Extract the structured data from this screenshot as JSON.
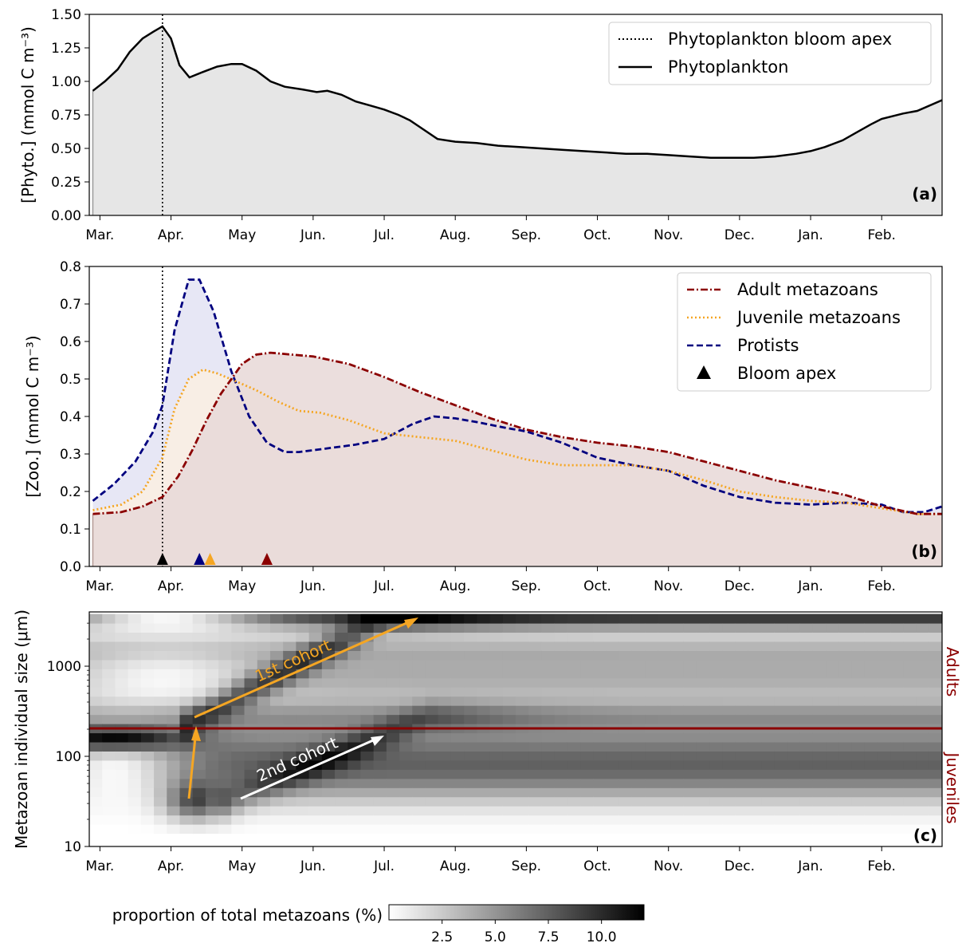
{
  "chart_data": [
    {
      "panel": "(a)",
      "type": "area",
      "ylabel": "[Phyto.] (mmol C m⁻³)",
      "ylim": [
        0,
        1.5
      ],
      "yticks": [
        0.0,
        0.25,
        0.5,
        0.75,
        1.0,
        1.25,
        1.5
      ],
      "yticklabels": [
        "0.00",
        "0.25",
        "0.50",
        "0.75",
        "1.00",
        "1.25",
        "1.50"
      ],
      "xlim": [
        -0.15,
        11.85
      ],
      "x_ticklabels": [
        "Mar.",
        "Apr.",
        "May",
        "Jun.",
        "Jul.",
        "Aug.",
        "Sep.",
        "Oct.",
        "Nov.",
        "Dec.",
        "Jan.",
        "Feb."
      ],
      "legend_position": "top-right",
      "legend": [
        "Phytoplankton bloom apex",
        "Phytoplankton"
      ],
      "bloom_apex_x": 0.88,
      "series": [
        {
          "name": "Phytoplankton",
          "style": "solid",
          "color": "#000000",
          "fill": "#e6e6e6",
          "x": [
            -0.1,
            0.07,
            0.25,
            0.42,
            0.6,
            0.75,
            0.88,
            1.0,
            1.12,
            1.26,
            1.45,
            1.65,
            1.85,
            2.0,
            2.2,
            2.4,
            2.6,
            2.85,
            3.05,
            3.2,
            3.4,
            3.6,
            3.8,
            4.0,
            4.2,
            4.36,
            4.5,
            4.75,
            5.0,
            5.3,
            5.6,
            5.9,
            6.2,
            6.5,
            6.8,
            7.1,
            7.4,
            7.7,
            8.0,
            8.3,
            8.6,
            8.9,
            9.2,
            9.5,
            9.8,
            10.0,
            10.2,
            10.45,
            10.65,
            10.85,
            11.0,
            11.15,
            11.3,
            11.5,
            11.85
          ],
          "values": [
            0.93,
            1.0,
            1.09,
            1.22,
            1.32,
            1.37,
            1.41,
            1.32,
            1.12,
            1.03,
            1.07,
            1.11,
            1.13,
            1.13,
            1.08,
            1.0,
            0.96,
            0.94,
            0.92,
            0.93,
            0.9,
            0.85,
            0.82,
            0.79,
            0.75,
            0.71,
            0.66,
            0.57,
            0.55,
            0.54,
            0.52,
            0.51,
            0.5,
            0.49,
            0.48,
            0.47,
            0.46,
            0.46,
            0.45,
            0.44,
            0.43,
            0.43,
            0.43,
            0.44,
            0.46,
            0.48,
            0.51,
            0.56,
            0.62,
            0.68,
            0.72,
            0.74,
            0.76,
            0.78,
            0.86
          ]
        }
      ]
    },
    {
      "panel": "(b)",
      "type": "area",
      "ylabel": "[Zoo.] (mmol C m⁻³)",
      "ylim": [
        0,
        0.8
      ],
      "yticks": [
        0.0,
        0.1,
        0.2,
        0.3,
        0.4,
        0.5,
        0.6,
        0.7,
        0.8
      ],
      "yticklabels": [
        "0.0",
        "0.1",
        "0.2",
        "0.3",
        "0.4",
        "0.5",
        "0.6",
        "0.7",
        "0.8"
      ],
      "xlim": [
        -0.15,
        11.85
      ],
      "x_ticklabels": [
        "Mar.",
        "Apr.",
        "May",
        "Jun.",
        "Jul.",
        "Aug.",
        "Sep.",
        "Oct.",
        "Nov.",
        "Dec.",
        "Jan.",
        "Feb."
      ],
      "legend_position": "top-right",
      "legend": [
        "Adult metazoans",
        "Juvenile metazoans",
        "Protists",
        "Bloom apex"
      ],
      "bloom_apex_x": 0.88,
      "apex_markers": [
        {
          "x": 0.88,
          "color": "#000000"
        },
        {
          "x": 1.4,
          "color": "#00007f"
        },
        {
          "x": 1.55,
          "color": "#f5a623"
        },
        {
          "x": 2.35,
          "color": "#8b0000"
        }
      ],
      "series": [
        {
          "name": "Adult metazoans",
          "style": "dashdot",
          "color": "#8b0000",
          "fill": "#fbf3f2",
          "x": [
            -0.1,
            0.3,
            0.6,
            0.88,
            1.1,
            1.3,
            1.5,
            1.7,
            2.0,
            2.2,
            2.4,
            2.7,
            3.0,
            3.5,
            4.0,
            4.5,
            5.0,
            5.5,
            6.0,
            6.5,
            7.0,
            7.5,
            8.0,
            8.5,
            9.0,
            9.5,
            10.0,
            10.5,
            11.0,
            11.5,
            11.85
          ],
          "values": [
            0.14,
            0.145,
            0.16,
            0.185,
            0.24,
            0.31,
            0.39,
            0.46,
            0.54,
            0.565,
            0.57,
            0.565,
            0.56,
            0.54,
            0.505,
            0.465,
            0.43,
            0.395,
            0.365,
            0.345,
            0.33,
            0.32,
            0.305,
            0.28,
            0.255,
            0.23,
            0.21,
            0.19,
            0.16,
            0.14,
            0.14
          ]
        },
        {
          "name": "Juvenile metazoans",
          "style": "dotted",
          "color": "#f5a623",
          "fill": "#fdf0df",
          "x": [
            -0.1,
            0.3,
            0.6,
            0.88,
            1.05,
            1.25,
            1.45,
            1.65,
            1.9,
            2.2,
            2.5,
            2.8,
            3.1,
            3.5,
            4.0,
            4.5,
            5.0,
            5.5,
            6.0,
            6.5,
            7.0,
            7.5,
            8.0,
            8.5,
            9.0,
            9.5,
            10.0,
            10.5,
            11.0,
            11.5,
            11.85
          ],
          "values": [
            0.15,
            0.165,
            0.2,
            0.29,
            0.42,
            0.5,
            0.525,
            0.515,
            0.495,
            0.47,
            0.44,
            0.415,
            0.41,
            0.39,
            0.355,
            0.345,
            0.335,
            0.31,
            0.285,
            0.27,
            0.27,
            0.27,
            0.255,
            0.23,
            0.2,
            0.185,
            0.175,
            0.17,
            0.155,
            0.14,
            0.14
          ]
        },
        {
          "name": "Protists",
          "style": "dashed",
          "color": "#00007f",
          "fill": "#dfdff2",
          "x": [
            -0.1,
            0.2,
            0.5,
            0.75,
            0.88,
            1.05,
            1.25,
            1.4,
            1.6,
            1.85,
            2.1,
            2.35,
            2.6,
            2.8,
            3.2,
            3.6,
            4.0,
            4.4,
            4.7,
            5.0,
            5.3,
            5.7,
            6.0,
            6.5,
            7.0,
            7.5,
            8.0,
            8.5,
            9.0,
            9.5,
            10.0,
            10.5,
            11.0,
            11.3,
            11.6,
            11.85
          ],
          "values": [
            0.175,
            0.22,
            0.28,
            0.36,
            0.43,
            0.63,
            0.765,
            0.765,
            0.68,
            0.52,
            0.4,
            0.33,
            0.305,
            0.305,
            0.315,
            0.325,
            0.34,
            0.38,
            0.4,
            0.395,
            0.385,
            0.37,
            0.36,
            0.33,
            0.29,
            0.27,
            0.255,
            0.215,
            0.185,
            0.17,
            0.165,
            0.17,
            0.165,
            0.145,
            0.145,
            0.16
          ]
        }
      ]
    },
    {
      "panel": "(c)",
      "type": "heatmap",
      "ylabel": "Metazoan individual size (μm)",
      "yscale": "log",
      "ylim": [
        10,
        4000
      ],
      "yticks": [
        10,
        100,
        1000
      ],
      "yticklabels": [
        "10",
        "100",
        "1000"
      ],
      "xlim": [
        -0.15,
        11.85
      ],
      "x_ticklabels": [
        "Mar.",
        "Apr.",
        "May",
        "Jun.",
        "Jul.",
        "Aug.",
        "Sep.",
        "Oct.",
        "Nov.",
        "Dec.",
        "Jan.",
        "Feb."
      ],
      "adult_juvenile_threshold_um": 200,
      "threshold_color": "#8b0000",
      "side_labels": [
        "Adults",
        "Juveniles"
      ],
      "annotations": [
        {
          "text": "1st cohort",
          "color": "#f5a623"
        },
        {
          "text": "2nd cohort",
          "color": "#ffffff"
        }
      ],
      "colorbar": {
        "label": "proportion of total metazoans (%)",
        "range": [
          0,
          12
        ],
        "ticks": [
          2.5,
          5.0,
          7.5,
          10.0
        ],
        "ticklabels": [
          "2.5",
          "5.0",
          "7.5",
          "10.0"
        ],
        "colormap": "gray_r"
      }
    }
  ]
}
